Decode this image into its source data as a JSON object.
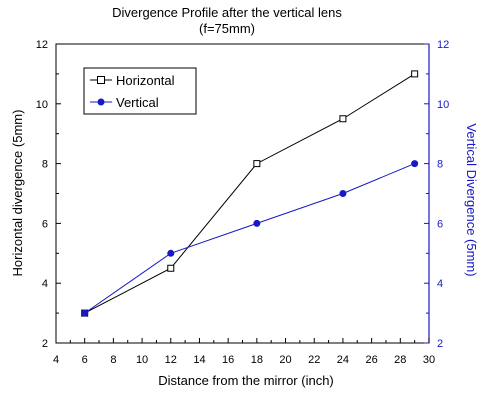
{
  "chart_data": {
    "type": "line",
    "title": "Divergence Profile after the vertical lens",
    "subtitle": "(f=75mm)",
    "xlabel": "Distance from the mirror (inch)",
    "ylabel": "Horizontal divergence (5mm)",
    "y2label": "Vertical Divergence (5mm)",
    "xlim": [
      4,
      30
    ],
    "ylim": [
      2,
      12
    ],
    "y2lim": [
      2,
      12
    ],
    "xticks": [
      4,
      6,
      8,
      10,
      12,
      14,
      16,
      18,
      20,
      22,
      24,
      26,
      28,
      30
    ],
    "yticks": [
      2,
      4,
      6,
      8,
      10,
      12
    ],
    "grid": false,
    "legend_position": "top-left",
    "series": [
      {
        "name": "Horizontal",
        "axis": "left",
        "color": "#000000",
        "marker": "open-square",
        "x": [
          6,
          12,
          18,
          24,
          29
        ],
        "y": [
          3,
          4.5,
          8,
          9.5,
          11
        ]
      },
      {
        "name": "Vertical",
        "axis": "right",
        "color": "#1818c8",
        "marker": "filled-circle",
        "x": [
          6,
          12,
          18,
          24,
          29
        ],
        "y": [
          3,
          5,
          6,
          7,
          8
        ]
      }
    ]
  }
}
